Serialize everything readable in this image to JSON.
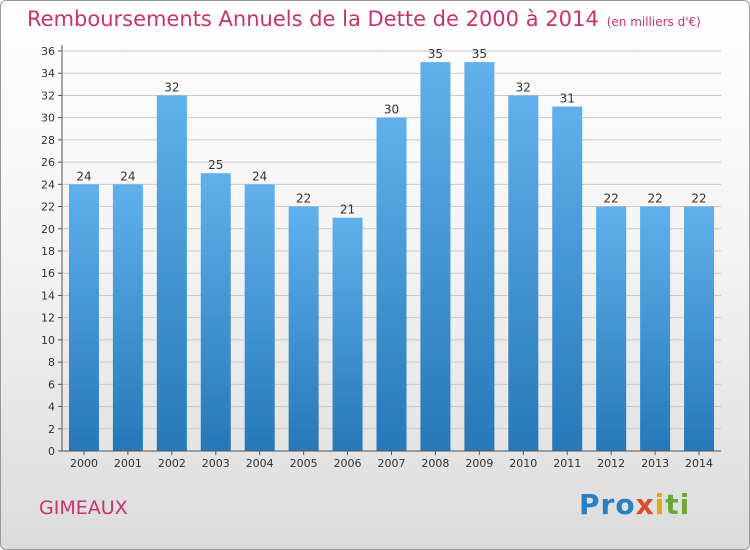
{
  "header": {
    "title": "Remboursements Annuels de la Dette de 2000 à 2014",
    "subtitle": "(en milliers d'€)"
  },
  "footer": {
    "commune": "GIMEAUX",
    "logo": "Proxiti"
  },
  "colors": {
    "title": "#c8336d",
    "bar_top": "#5fb0ec",
    "bar_bottom": "#2778b8",
    "grid": "#c8c8c8"
  },
  "chart_data": {
    "type": "bar",
    "title": "Remboursements Annuels de la Dette de 2000 à 2014",
    "categories": [
      "2000",
      "2001",
      "2002",
      "2003",
      "2004",
      "2005",
      "2006",
      "2007",
      "2008",
      "2009",
      "2010",
      "2011",
      "2012",
      "2013",
      "2014"
    ],
    "values": [
      24,
      24,
      32,
      25,
      24,
      22,
      21,
      30,
      35,
      35,
      32,
      31,
      22,
      22,
      22
    ],
    "ylim": [
      0,
      36
    ],
    "ytick_step": 2,
    "grid": true,
    "data_labels": true,
    "xlabel": "",
    "ylabel": ""
  }
}
